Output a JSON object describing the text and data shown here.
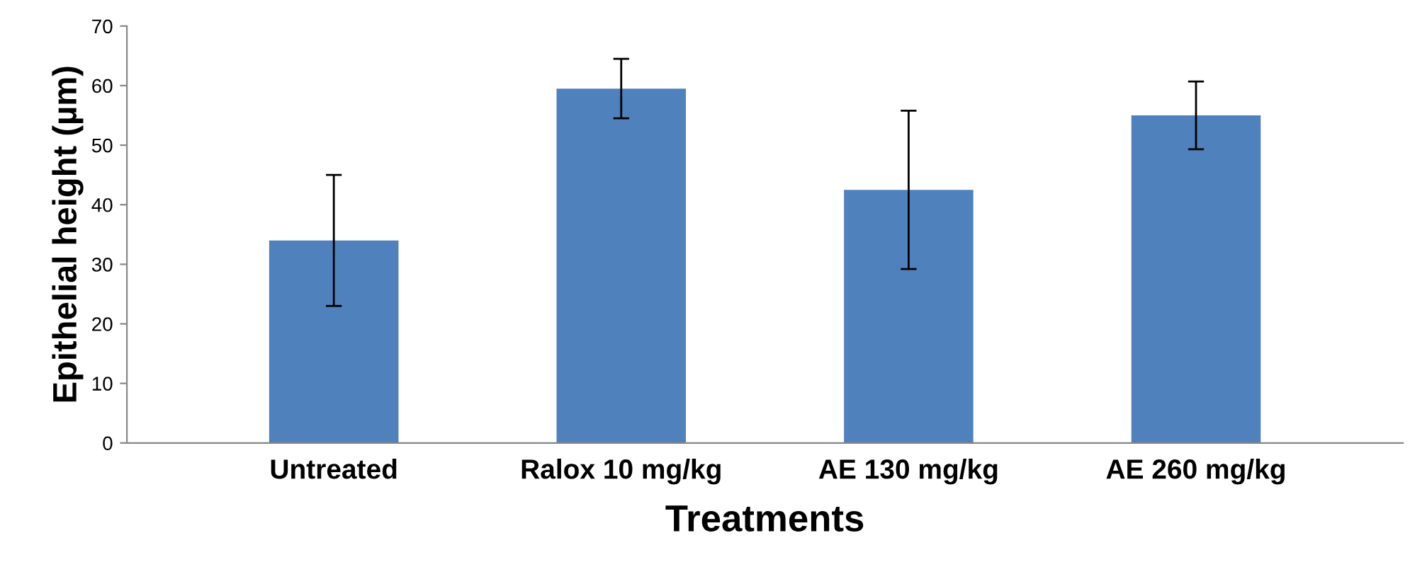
{
  "chart_data": {
    "type": "bar",
    "xlabel": "Treatments",
    "ylabel": "Epithelial height (µm)",
    "categories": [
      "Untreated",
      "Ralox 10 mg/kg",
      "AE 130 mg/kg",
      "AE 260 mg/kg"
    ],
    "values": [
      34,
      59.5,
      42.5,
      55
    ],
    "errors": [
      11,
      5,
      13.3,
      5.7
    ],
    "color": "#4f81bd",
    "ylim": [
      0,
      70
    ],
    "yticks": [
      0,
      10,
      20,
      30,
      40,
      50,
      60,
      70
    ],
    "grid": false
  }
}
